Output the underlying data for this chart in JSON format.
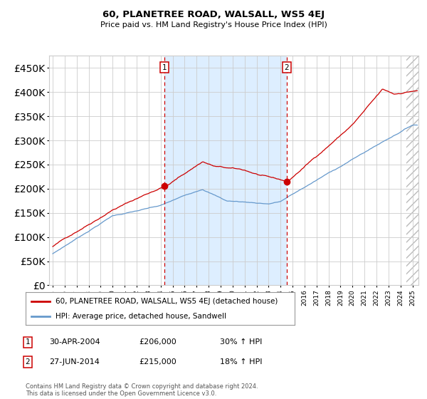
{
  "title": "60, PLANETREE ROAD, WALSALL, WS5 4EJ",
  "subtitle": "Price paid vs. HM Land Registry's House Price Index (HPI)",
  "legend_line1": "60, PLANETREE ROAD, WALSALL, WS5 4EJ (detached house)",
  "legend_line2": "HPI: Average price, detached house, Sandwell",
  "annotation1_date": "30-APR-2004",
  "annotation1_price": "£206,000",
  "annotation1_hpi": "30% ↑ HPI",
  "annotation2_date": "27-JUN-2014",
  "annotation2_price": "£215,000",
  "annotation2_hpi": "18% ↑ HPI",
  "footer": "Contains HM Land Registry data © Crown copyright and database right 2024.\nThis data is licensed under the Open Government Licence v3.0.",
  "sale1_x": 2004.33,
  "sale1_y": 206000,
  "sale2_x": 2014.5,
  "sale2_y": 215000,
  "red_color": "#cc0000",
  "blue_color": "#6699cc",
  "shading_color": "#ddeeff",
  "hatch_color": "#bbbbbb",
  "background_color": "#ffffff",
  "grid_color": "#cccccc",
  "ylim": [
    0,
    475000
  ],
  "xlim_start": 1994.7,
  "xlim_end": 2025.5,
  "year_start": 1995,
  "year_end": 2025
}
